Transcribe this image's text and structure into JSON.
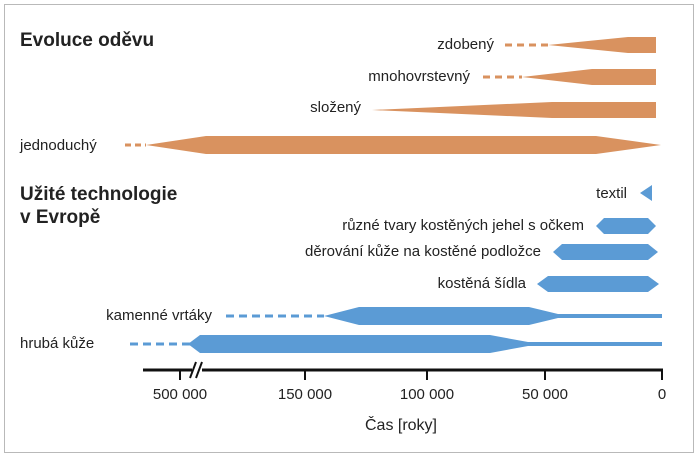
{
  "colors": {
    "clothing": "#D9925F",
    "technology": "#5B9BD5",
    "axis": "#111111",
    "frame": "#B9B9B9"
  },
  "section_clothing": {
    "title": "Evoluce oděvu",
    "items": [
      {
        "label": "zdobený"
      },
      {
        "label": "mnohovrstevný"
      },
      {
        "label": "složený"
      },
      {
        "label": "jednoduchý"
      }
    ]
  },
  "section_tech": {
    "title_line1": "Užité technologie",
    "title_line2": "v Evropě",
    "items": [
      {
        "label": "textil"
      },
      {
        "label": "různé tvary kostěných jehel s očkem"
      },
      {
        "label": "děrování kůže na kostěné podložce"
      },
      {
        "label": "kostěná šídla"
      },
      {
        "label": "kamenné vrtáky"
      },
      {
        "label": "hrubá kůže"
      }
    ]
  },
  "axis": {
    "ticks": [
      "500 000",
      "150 000",
      "100 000",
      "50 000",
      "0"
    ],
    "title": "Čas [roky]"
  }
}
